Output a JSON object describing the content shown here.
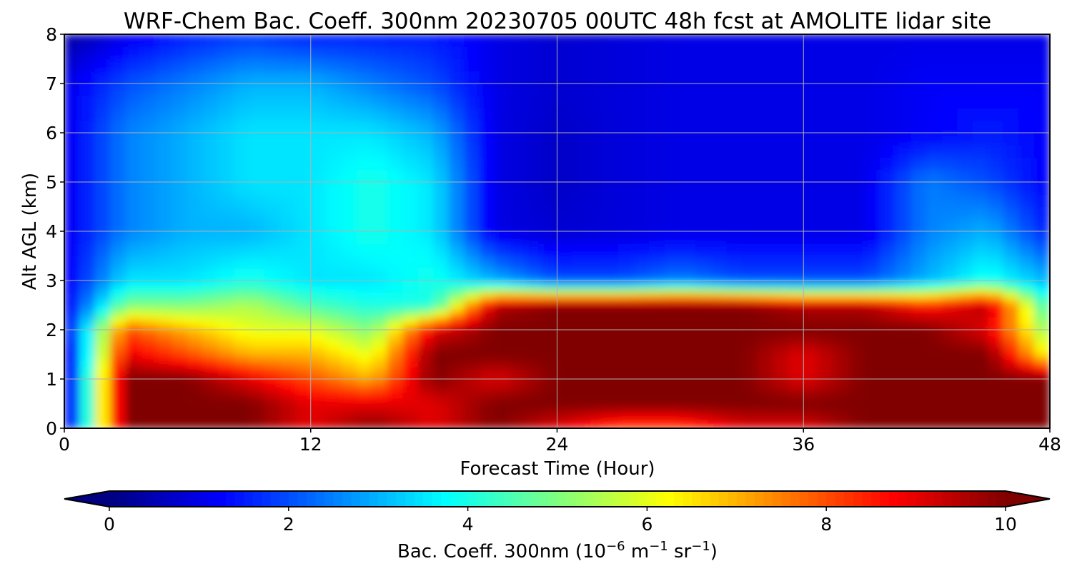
{
  "chart_data": {
    "type": "heatmap",
    "title": "WRF-Chem Bac. Coeff. 300nm  20230705 00UTC 48h fcst at AMOLITE lidar site",
    "xlabel": "Forecast Time (Hour)",
    "ylabel": "Alt AGL (km)",
    "xlim": [
      0,
      48
    ],
    "ylim": [
      0,
      8
    ],
    "xticks": [
      0,
      12,
      24,
      36,
      48
    ],
    "yticks": [
      0,
      1,
      2,
      3,
      4,
      5,
      6,
      7,
      8
    ],
    "grid": true,
    "colormap": "jet",
    "colorbar": {
      "label_main": "Bac. Coeff. 300nm  (10",
      "label_exp1": "−6",
      "label_mid": " m",
      "label_exp2": "−1",
      "label_mid2": " sr",
      "label_exp3": "−1",
      "label_end": ")",
      "range": [
        0,
        10
      ],
      "ticks": [
        0,
        2,
        4,
        6,
        8,
        10
      ],
      "extend": "both",
      "orientation": "horizontal"
    },
    "x": [
      0,
      3,
      6,
      9,
      12,
      15,
      18,
      21,
      24,
      27,
      30,
      33,
      36,
      39,
      42,
      45,
      48
    ],
    "y": [
      0,
      0.5,
      1,
      1.5,
      2,
      2.5,
      3,
      4,
      5,
      6,
      7,
      8
    ],
    "z": [
      [
        0.5,
        10,
        10,
        10,
        9,
        10,
        9,
        10,
        9,
        8,
        8,
        9,
        9,
        10,
        10,
        10,
        10
      ],
      [
        0.5,
        10,
        10,
        10,
        9,
        9,
        9,
        10,
        10,
        10,
        10,
        10,
        10,
        10,
        10,
        10,
        10
      ],
      [
        0.5,
        10,
        10,
        9,
        8,
        7,
        10,
        9,
        10,
        10,
        10,
        10,
        9,
        10,
        10,
        10,
        10
      ],
      [
        0.5,
        9,
        8,
        7,
        7,
        6,
        10,
        10,
        10,
        10,
        10,
        10,
        9,
        10,
        10,
        10,
        6
      ],
      [
        1,
        8,
        7,
        6,
        6,
        5,
        9,
        10,
        10,
        10,
        10,
        10,
        10,
        10,
        10,
        9,
        5
      ],
      [
        1,
        5,
        5,
        5.5,
        4.5,
        4,
        4,
        9.5,
        10,
        10,
        10,
        10,
        9.5,
        9.5,
        8.5,
        9.5,
        4
      ],
      [
        1,
        3.5,
        3.5,
        4,
        3.5,
        3.5,
        4,
        3,
        2,
        2,
        2.5,
        2,
        2,
        2,
        3,
        4,
        3
      ],
      [
        1,
        2.5,
        3,
        3,
        3.5,
        4,
        3.5,
        1,
        0.8,
        0.9,
        1,
        1,
        1,
        1,
        2.5,
        3,
        1.5
      ],
      [
        1,
        2.5,
        3,
        3.5,
        3.5,
        4,
        3.5,
        1,
        0.7,
        0.9,
        1,
        1,
        1,
        1,
        2.5,
        2,
        1.2
      ],
      [
        1,
        2.5,
        3,
        3.5,
        3.5,
        3.5,
        3,
        1,
        0.7,
        0.9,
        1,
        1,
        1,
        1,
        1.2,
        1.5,
        1.2
      ],
      [
        1,
        2,
        2.5,
        3,
        3,
        2.5,
        2,
        1,
        0.8,
        0.9,
        1,
        1,
        1,
        1,
        1.2,
        1.2,
        1.2
      ],
      [
        0.3,
        1,
        1.5,
        1.8,
        1.5,
        1.5,
        1.5,
        1,
        0.8,
        0.9,
        1,
        1,
        1,
        1,
        1,
        1,
        1
      ]
    ]
  }
}
